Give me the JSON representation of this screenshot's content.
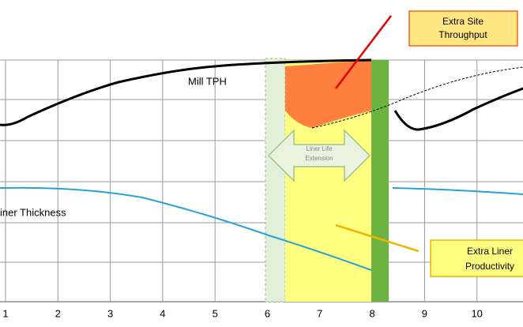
{
  "callouts": {
    "throughput": [
      "Extra Site",
      "Throughput"
    ],
    "productivity": [
      "Extra Liner",
      "Productivity"
    ]
  },
  "labels": {
    "mill": "Mill TPH",
    "liner": "iner Thickness",
    "extension": [
      "Liner Life",
      "Extension"
    ]
  },
  "x_axis": {
    "ticks": [
      "1",
      "2",
      "3",
      "4",
      "5",
      "6",
      "7",
      "8",
      "9",
      "10"
    ]
  }
}
